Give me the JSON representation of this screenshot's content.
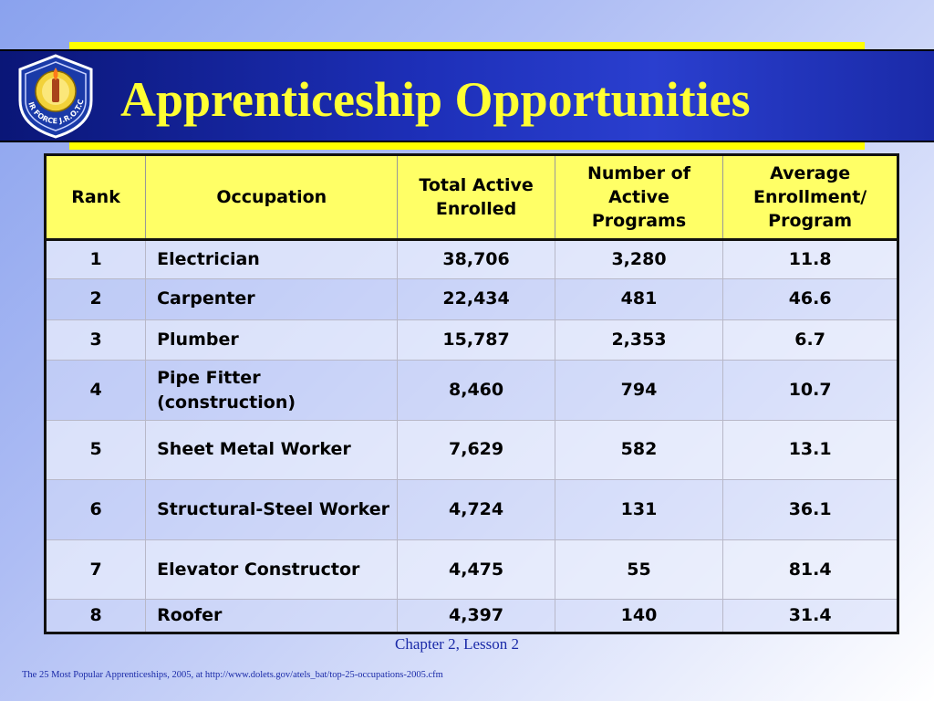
{
  "title": "Apprenticeship Opportunities",
  "logo": {
    "icon": "air-force-jrotc-emblem-icon",
    "text": "AIR FORCE J.R.O.T.C."
  },
  "table": {
    "headers": [
      "Rank",
      "Occupation",
      "Total Active Enrolled",
      "Number of Active Programs",
      "Average Enrollment/ Program"
    ],
    "rows": [
      [
        "1",
        "Electrician",
        "38,706",
        "3,280",
        "11.8"
      ],
      [
        "2",
        "Carpenter",
        "22,434",
        "481",
        "46.6"
      ],
      [
        "3",
        "Plumber",
        "15,787",
        "2,353",
        "6.7"
      ],
      [
        "4",
        "Pipe Fitter (construction)",
        "8,460",
        "794",
        "10.7"
      ],
      [
        "5",
        "Sheet Metal Worker",
        "7,629",
        "582",
        "13.1"
      ],
      [
        "6",
        "Structural-Steel Worker",
        "4,724",
        "131",
        "36.1"
      ],
      [
        "7",
        "Elevator Constructor",
        "4,475",
        "55",
        "81.4"
      ],
      [
        "8",
        "Roofer",
        "4,397",
        "140",
        "31.4"
      ]
    ]
  },
  "footer": {
    "chapter": "Chapter 2, Lesson 2",
    "source": "The 25 Most Popular Apprenticeships, 2005, at http://www.dolets.gov/atels_bat/top-25-occupations-2005.cfm"
  },
  "colors": {
    "banner": "#1d2fb8",
    "title": "#ffff33",
    "header_bg": "#ffff66",
    "accent_bar": "#ffff00",
    "footer_text": "#1a2aa8"
  }
}
